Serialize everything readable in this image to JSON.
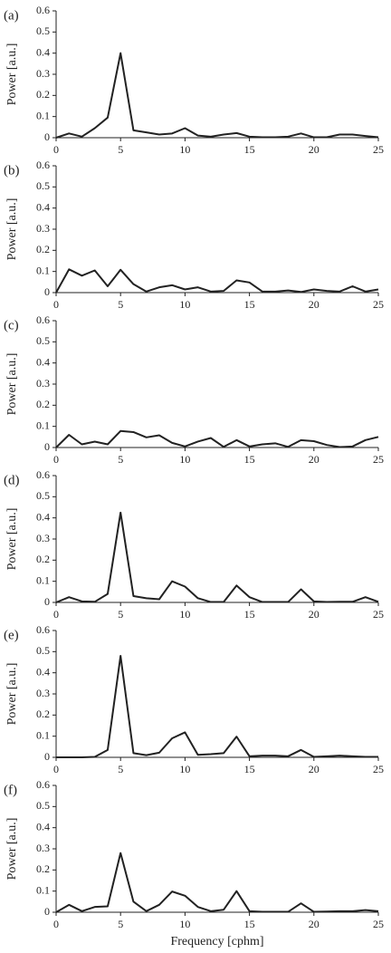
{
  "chart_data": [
    {
      "type": "line",
      "title": "(a)",
      "ylabel": "Power [a.u.]",
      "x": [
        0,
        1,
        2,
        3,
        4,
        5,
        6,
        7,
        8,
        9,
        10,
        11,
        12,
        13,
        14,
        15,
        16,
        17,
        18,
        19,
        20,
        21,
        22,
        23,
        24,
        25
      ],
      "values": [
        0,
        0.02,
        0.005,
        0.045,
        0.095,
        0.4,
        0.035,
        0.025,
        0.015,
        0.02,
        0.045,
        0.01,
        0.005,
        0.015,
        0.022,
        0.005,
        0.002,
        0.002,
        0.005,
        0.02,
        0.002,
        0.002,
        0.015,
        0.015,
        0.008,
        0.002
      ],
      "color": "#222222",
      "xlim": [
        0,
        25
      ],
      "xticks": [
        0,
        5,
        10,
        15,
        20,
        25
      ],
      "ylim": [
        0,
        0.6
      ],
      "yticks": [
        0,
        0.1,
        0.2,
        0.3,
        0.4,
        0.5,
        0.6
      ]
    },
    {
      "type": "line",
      "title": "(b)",
      "ylabel": "Power [a.u.]",
      "x": [
        0,
        1,
        2,
        3,
        4,
        5,
        6,
        7,
        8,
        9,
        10,
        11,
        12,
        13,
        14,
        15,
        16,
        17,
        18,
        19,
        20,
        21,
        22,
        23,
        24,
        25
      ],
      "values": [
        0,
        0.11,
        0.08,
        0.105,
        0.03,
        0.108,
        0.04,
        0.005,
        0.025,
        0.035,
        0.015,
        0.025,
        0.005,
        0.008,
        0.058,
        0.048,
        0.005,
        0.005,
        0.01,
        0.003,
        0.015,
        0.008,
        0.005,
        0.03,
        0.005,
        0.015
      ],
      "color": "#222222",
      "xlim": [
        0,
        25
      ],
      "xticks": [
        0,
        5,
        10,
        15,
        20,
        25
      ],
      "ylim": [
        0,
        0.6
      ],
      "yticks": [
        0,
        0.1,
        0.2,
        0.3,
        0.4,
        0.5,
        0.6
      ]
    },
    {
      "type": "line",
      "title": "(c)",
      "ylabel": "Power [a.u.]",
      "x": [
        0,
        1,
        2,
        3,
        4,
        5,
        6,
        7,
        8,
        9,
        10,
        11,
        12,
        13,
        14,
        15,
        16,
        17,
        18,
        19,
        20,
        21,
        22,
        23,
        24,
        25
      ],
      "values": [
        0,
        0.06,
        0.015,
        0.028,
        0.015,
        0.078,
        0.073,
        0.048,
        0.058,
        0.022,
        0.005,
        0.028,
        0.045,
        0.003,
        0.035,
        0.005,
        0.015,
        0.02,
        0.003,
        0.035,
        0.03,
        0.012,
        0.002,
        0.005,
        0.035,
        0.05
      ],
      "color": "#222222",
      "xlim": [
        0,
        25
      ],
      "xticks": [
        0,
        5,
        10,
        15,
        20,
        25
      ],
      "ylim": [
        0,
        0.6
      ],
      "yticks": [
        0,
        0.1,
        0.2,
        0.3,
        0.4,
        0.5,
        0.6
      ]
    },
    {
      "type": "line",
      "title": "(d)",
      "ylabel": "Power [a.u.]",
      "x": [
        0,
        1,
        2,
        3,
        4,
        5,
        6,
        7,
        8,
        9,
        10,
        11,
        12,
        13,
        14,
        15,
        16,
        17,
        18,
        19,
        20,
        21,
        22,
        23,
        24,
        25
      ],
      "values": [
        0,
        0.025,
        0.005,
        0.003,
        0.04,
        0.425,
        0.03,
        0.02,
        0.015,
        0.1,
        0.075,
        0.02,
        0.002,
        0.002,
        0.08,
        0.025,
        0.002,
        0.002,
        0.002,
        0.062,
        0.005,
        0.002,
        0.003,
        0.003,
        0.025,
        0.003
      ],
      "color": "#222222",
      "xlim": [
        0,
        25
      ],
      "xticks": [
        0,
        5,
        10,
        15,
        20,
        25
      ],
      "ylim": [
        0,
        0.6
      ],
      "yticks": [
        0,
        0.1,
        0.2,
        0.3,
        0.4,
        0.5,
        0.6
      ]
    },
    {
      "type": "line",
      "title": "(e)",
      "ylabel": "Power [a.u.]",
      "x": [
        0,
        1,
        2,
        3,
        4,
        5,
        6,
        7,
        8,
        9,
        10,
        11,
        12,
        13,
        14,
        15,
        16,
        17,
        18,
        19,
        20,
        21,
        22,
        23,
        24,
        25
      ],
      "values": [
        0,
        0,
        0,
        0.002,
        0.035,
        0.48,
        0.02,
        0.01,
        0.022,
        0.09,
        0.118,
        0.012,
        0.015,
        0.02,
        0.098,
        0.005,
        0.008,
        0.008,
        0.005,
        0.035,
        0.002,
        0.005,
        0.008,
        0.005,
        0.002,
        0.002
      ],
      "color": "#222222",
      "xlim": [
        0,
        25
      ],
      "xticks": [
        0,
        5,
        10,
        15,
        20,
        25
      ],
      "ylim": [
        0,
        0.6
      ],
      "yticks": [
        0,
        0.1,
        0.2,
        0.3,
        0.4,
        0.5,
        0.6
      ]
    },
    {
      "type": "line",
      "title": "(f)",
      "ylabel": "Power [a.u.]",
      "xlabel": "Frequency [cphm]",
      "x": [
        0,
        1,
        2,
        3,
        4,
        5,
        6,
        7,
        8,
        9,
        10,
        11,
        12,
        13,
        14,
        15,
        16,
        17,
        18,
        19,
        20,
        21,
        22,
        23,
        24,
        25
      ],
      "values": [
        0,
        0.035,
        0.005,
        0.025,
        0.028,
        0.28,
        0.05,
        0.005,
        0.035,
        0.098,
        0.078,
        0.025,
        0.005,
        0.012,
        0.1,
        0.005,
        0.002,
        0.002,
        0.002,
        0.042,
        0.002,
        0.003,
        0.005,
        0.005,
        0.01,
        0.005
      ],
      "color": "#222222",
      "xlim": [
        0,
        25
      ],
      "xticks": [
        0,
        5,
        10,
        15,
        20,
        25
      ],
      "ylim": [
        0,
        0.6
      ],
      "yticks": [
        0,
        0.1,
        0.2,
        0.3,
        0.4,
        0.5,
        0.6
      ]
    }
  ]
}
